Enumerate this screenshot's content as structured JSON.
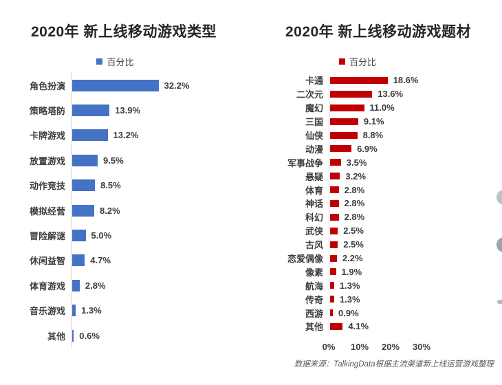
{
  "source_note": "数据来源：TalkingData根据主流渠道新上线运营游戏整理",
  "chart_data": [
    {
      "type": "bar",
      "orientation": "horizontal",
      "title": "2020年 新上线移动游戏类型",
      "legend_label": "百分比",
      "legend_position": "top-center",
      "bar_color": "#4472C4",
      "grid": false,
      "x_axis_visible": false,
      "categories": [
        "角色扮演",
        "策略塔防",
        "卡牌游戏",
        "放置游戏",
        "动作竞技",
        "模拟经营",
        "冒险解谜",
        "休闲益智",
        "体育游戏",
        "音乐游戏",
        "其他"
      ],
      "values": [
        32.2,
        13.9,
        13.2,
        9.5,
        8.5,
        8.2,
        5.0,
        4.7,
        2.8,
        1.3,
        0.6
      ],
      "value_labels": [
        "32.2%",
        "13.9%",
        "13.2%",
        "9.5%",
        "8.5%",
        "8.2%",
        "5.0%",
        "4.7%",
        "2.8%",
        "1.3%",
        "0.6%"
      ]
    },
    {
      "type": "bar",
      "orientation": "horizontal",
      "title": "2020年 新上线移动游戏题材",
      "legend_label": "百分比",
      "legend_position": "top-center",
      "bar_color": "#C00000",
      "grid": false,
      "x_axis_visible": true,
      "x_ticks": [
        "0%",
        "10%",
        "20%",
        "30%"
      ],
      "xlim": [
        0,
        40
      ],
      "categories": [
        "卡通",
        "二次元",
        "魔幻",
        "三国",
        "仙侠",
        "动漫",
        "军事战争",
        "悬疑",
        "体育",
        "神话",
        "科幻",
        "武侠",
        "古风",
        "恋爱偶像",
        "像素",
        "航海",
        "传奇",
        "西游",
        "其他"
      ],
      "values": [
        18.6,
        13.6,
        11.0,
        9.1,
        8.8,
        6.9,
        3.5,
        3.2,
        2.8,
        2.8,
        2.8,
        2.5,
        2.5,
        2.2,
        1.9,
        1.3,
        1.3,
        0.9,
        4.1
      ],
      "value_labels": [
        "18.6%",
        "13.6%",
        "11.0%",
        "9.1%",
        "8.8%",
        "6.9%",
        "3.5%",
        "3.2%",
        "2.8%",
        "2.8%",
        "2.8%",
        "2.5%",
        "2.5%",
        "2.2%",
        "1.9%",
        "1.3%",
        "1.3%",
        "0.9%",
        "4.1%"
      ]
    }
  ]
}
